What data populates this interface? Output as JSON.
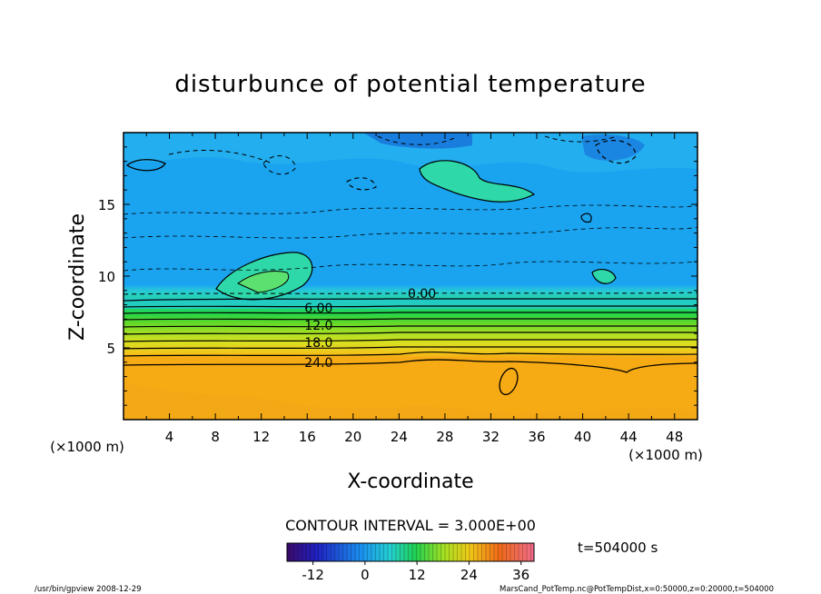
{
  "chart_data": {
    "type": "heatmap",
    "title": "disturbunce of potential temperature",
    "xlabel": "X-coordinate",
    "ylabel": "Z-coordinate",
    "x_unit": "(×1000 m)",
    "y_unit": "(×1000 m)",
    "xlim": [
      0,
      50
    ],
    "ylim": [
      0,
      20
    ],
    "x_ticks": [
      "4",
      "8",
      "12",
      "16",
      "20",
      "24",
      "28",
      "32",
      "36",
      "40",
      "44",
      "48"
    ],
    "y_ticks": [
      "5",
      "10",
      "15"
    ],
    "contour_interval_text": "CONTOUR INTERVAL = 3.000E+00",
    "contour_labels": [
      {
        "text": "0.00",
        "x": 26,
        "z": 8.6
      },
      {
        "text": "6.00",
        "x": 17,
        "z": 7.6
      },
      {
        "text": "12.0",
        "x": 17,
        "z": 6.4
      },
      {
        "text": "18.0",
        "x": 17,
        "z": 5.2
      },
      {
        "text": "24.0",
        "x": 17,
        "z": 3.8
      }
    ],
    "colorbar": {
      "ticks": [
        "-12",
        "0",
        "12",
        "24",
        "36"
      ],
      "range": [
        -18,
        39
      ]
    },
    "time_label": "t=504000 s"
  },
  "footer": {
    "left": "/usr/bin/gpview  2008-12-29",
    "right": "MarsCand_PotTemp.nc@PotTempDist,x=0:50000,z=0:20000,t=504000"
  }
}
